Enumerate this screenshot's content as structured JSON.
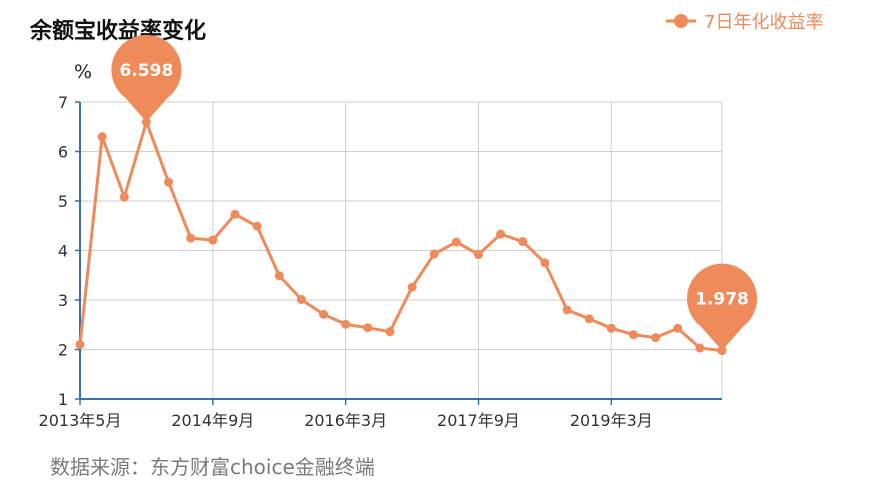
{
  "chart_data": {
    "type": "line",
    "title": "余额宝收益率变化",
    "ylabel": "%",
    "ylim": [
      1,
      7
    ],
    "yticks": [
      1,
      2,
      3,
      4,
      5,
      6,
      7
    ],
    "xtick_labels": [
      "2013年5月",
      "2014年9月",
      "2016年3月",
      "2017年9月",
      "2019年3月"
    ],
    "xtick_indices": [
      0,
      6,
      12,
      18,
      24
    ],
    "legend": {
      "placement": "top-right"
    },
    "grid": true,
    "series": [
      {
        "name": "7日年化收益率",
        "color": "#ef8a5a",
        "values": [
          2.1,
          6.3,
          5.08,
          6.598,
          5.38,
          4.25,
          4.21,
          4.73,
          4.49,
          3.49,
          3.01,
          2.71,
          2.51,
          2.44,
          2.36,
          3.26,
          3.93,
          4.17,
          3.92,
          4.33,
          4.18,
          3.75,
          2.8,
          2.62,
          2.43,
          2.3,
          2.24,
          2.43,
          2.03,
          1.978
        ]
      }
    ],
    "annotations": [
      {
        "point_index": 3,
        "label": "6.598"
      },
      {
        "point_index": 29,
        "label": "1.978"
      }
    ],
    "source_text": "数据来源：东方财富choice金融终端"
  }
}
